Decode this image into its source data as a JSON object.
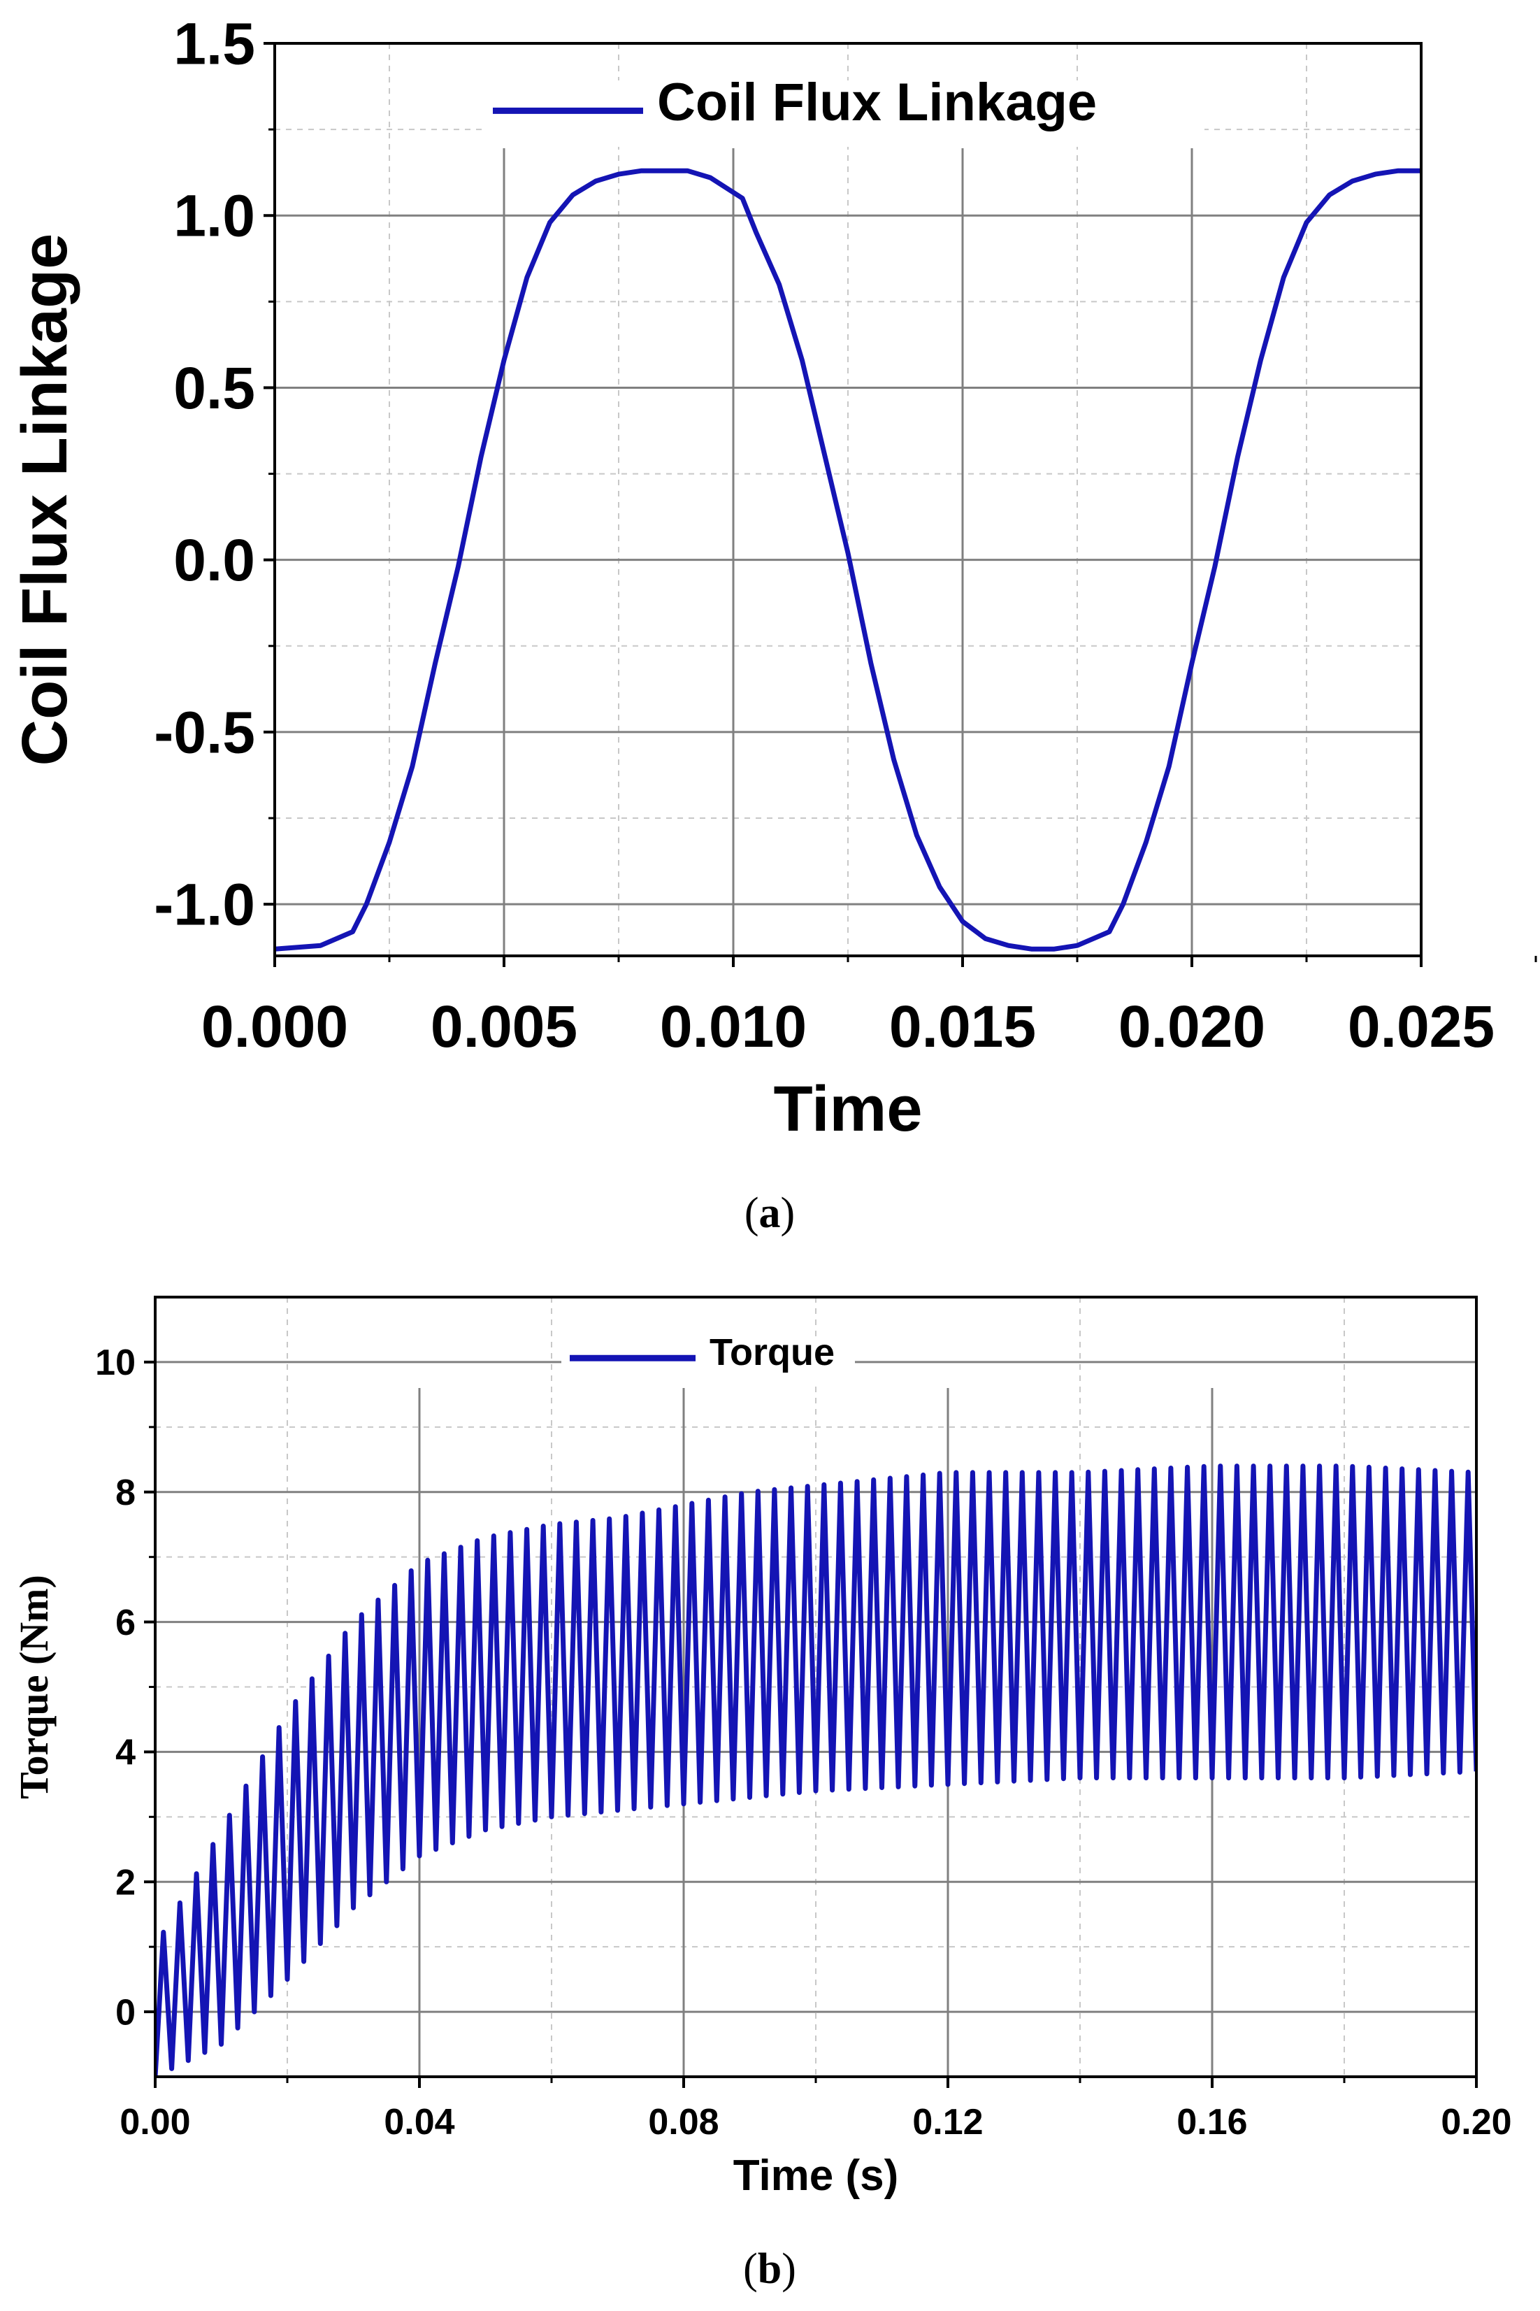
{
  "colors": {
    "series": "#1414b4",
    "axis": "#000000",
    "grid_major": "#808080",
    "grid_minor": "#c8c8c8"
  },
  "panels": {
    "a": {
      "caption_open": "(",
      "caption_letter": "a",
      "caption_close": ")"
    },
    "b": {
      "caption_open": "(",
      "caption_letter": "b",
      "caption_close": ")"
    }
  },
  "chart_data": [
    {
      "type": "line",
      "panel": "a",
      "title": "",
      "xlabel": "Time",
      "ylabel": "Coil Flux Linkage",
      "xlim": [
        0,
        0.025
      ],
      "ylim": [
        -1.15,
        1.5
      ],
      "xticks": [
        "0.000",
        "0.005",
        "0.010",
        "0.015",
        "0.020",
        "0.025"
      ],
      "xtick_values": [
        0,
        0.005,
        0.01,
        0.015,
        0.02,
        0.025
      ],
      "yticks": [
        "-1.0",
        "-0.5",
        "0.0",
        "0.5",
        "1.0",
        "1.5"
      ],
      "ytick_values": [
        -1.0,
        -0.5,
        0.0,
        0.5,
        1.0,
        1.5
      ],
      "grid": true,
      "legend": "top-center",
      "series": [
        {
          "name": "Coil Flux Linkage",
          "x": [
            0,
            0.001,
            0.0017,
            0.002,
            0.0025,
            0.003,
            0.0035,
            0.004,
            0.0045,
            0.005,
            0.0055,
            0.006,
            0.0065,
            0.007,
            0.0075,
            0.008,
            0.0085,
            0.009,
            0.0095,
            0.0102,
            0.0105,
            0.011,
            0.0115,
            0.012,
            0.0125,
            0.013,
            0.0135,
            0.014,
            0.0145,
            0.015,
            0.0155,
            0.016,
            0.0165,
            0.017,
            0.0175,
            0.0182,
            0.0185,
            0.019,
            0.0195,
            0.02,
            0.0205,
            0.021,
            0.0215,
            0.022,
            0.0225,
            0.023,
            0.0235,
            0.024,
            0.0245,
            0.025
          ],
          "y": [
            -1.13,
            -1.12,
            -1.08,
            -1.0,
            -0.82,
            -0.6,
            -0.3,
            -0.02,
            0.3,
            0.58,
            0.82,
            0.98,
            1.06,
            1.1,
            1.12,
            1.13,
            1.13,
            1.13,
            1.11,
            1.05,
            0.95,
            0.8,
            0.58,
            0.3,
            0.02,
            -0.3,
            -0.58,
            -0.8,
            -0.95,
            -1.05,
            -1.1,
            -1.12,
            -1.13,
            -1.13,
            -1.12,
            -1.08,
            -1.0,
            -0.82,
            -0.6,
            -0.3,
            -0.02,
            0.3,
            0.58,
            0.82,
            0.98,
            1.06,
            1.1,
            1.12,
            1.13,
            1.13
          ]
        }
      ]
    },
    {
      "type": "line",
      "panel": "b",
      "title": "",
      "xlabel": "Time (s)",
      "ylabel": "Torque (Nm)",
      "xlim": [
        0,
        0.2
      ],
      "ylim": [
        -1,
        11
      ],
      "xticks": [
        "0.00",
        "0.04",
        "0.08",
        "0.12",
        "0.16",
        "0.20"
      ],
      "xtick_values": [
        0,
        0.04,
        0.08,
        0.12,
        0.16,
        0.2
      ],
      "yticks": [
        "0",
        "2",
        "4",
        "6",
        "8",
        "10"
      ],
      "ytick_values": [
        0,
        2,
        4,
        6,
        8,
        10
      ],
      "grid": true,
      "legend": "top-center",
      "ripple_period_s": 0.0025,
      "series": [
        {
          "name": "Torque",
          "x": [
            0,
            0.01,
            0.02,
            0.03,
            0.04,
            0.05,
            0.06,
            0.07,
            0.08,
            0.09,
            0.1,
            0.12,
            0.14,
            0.16,
            0.18,
            0.2
          ],
          "upper_envelope": [
            1.0,
            2.8,
            4.6,
            6.0,
            6.9,
            7.3,
            7.5,
            7.6,
            7.8,
            8.0,
            8.1,
            8.3,
            8.3,
            8.4,
            8.4,
            8.3
          ],
          "lower_envelope": [
            -1.0,
            -0.5,
            0.5,
            1.6,
            2.4,
            2.8,
            3.0,
            3.1,
            3.2,
            3.3,
            3.4,
            3.5,
            3.6,
            3.6,
            3.6,
            3.7
          ]
        }
      ]
    }
  ]
}
